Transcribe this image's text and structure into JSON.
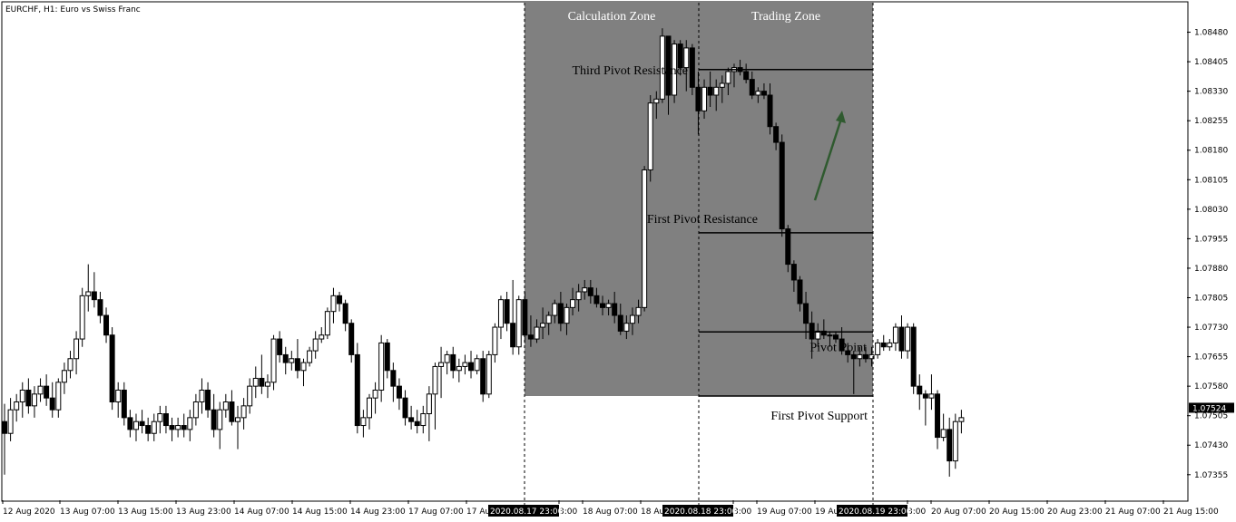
{
  "chart_data": {
    "type": "candlestick",
    "title": "EURCHF, H1:  Euro vs Swiss Franc",
    "ylim": [
      1.0729,
      1.08555
    ],
    "price_label": "1.07524",
    "y_ticks": [
      "1.08480",
      "1.08405",
      "1.08330",
      "1.08255",
      "1.08180",
      "1.08105",
      "1.08030",
      "1.07955",
      "1.07880",
      "1.07805",
      "1.07730",
      "1.07655",
      "1.07580",
      "1.07505",
      "1.07430",
      "1.07355"
    ],
    "x_ticks": [
      "12 Aug 2020",
      "13 Aug 07:00",
      "13 Aug 15:00",
      "13 Aug 23:00",
      "14 Aug 07:00",
      "14 Aug 15:00",
      "14 Aug 23:00",
      "17 Aug 07:00",
      "17 Au",
      "3:00",
      "18 Aug 07:00",
      "18 Au",
      "3:00",
      "19 Aug 07:00",
      "19 Au",
      "3:00",
      "20 Aug 07:00",
      "20 Aug 15:00",
      "20 Aug 23:00",
      "21 Aug 07:00",
      "21 Aug 15:00"
    ],
    "x_highlight": [
      "2020.08.17 23:00",
      "2020.08.18 23:00",
      "2020.08.19 23:00"
    ],
    "zones": [
      {
        "label": "Calculation Zone",
        "from": "2020.08.17 23:00",
        "to": "2020.08.18 23:00",
        "low": 1.07555
      },
      {
        "label": "Trading Zone",
        "from": "2020.08.18 23:00",
        "to": "2020.08.19 23:00",
        "low": 1.07555
      }
    ],
    "levels": [
      {
        "name": "Third Pivot Resistance",
        "value": 1.08385
      },
      {
        "name": "First Pivot Resistance",
        "value": 1.0797
      },
      {
        "name": "Pivot Point",
        "value": 1.07718
      },
      {
        "name": "First Pivot Support",
        "value": 1.07555
      }
    ],
    "candles": [
      [
        1.0749,
        1.07535,
        1.07355,
        1.0746
      ],
      [
        1.0746,
        1.0755,
        1.0744,
        1.0752
      ],
      [
        1.0752,
        1.0756,
        1.0749,
        1.0754
      ],
      [
        1.0754,
        1.0759,
        1.075,
        1.0757
      ],
      [
        1.0757,
        1.076,
        1.0751,
        1.0753
      ],
      [
        1.0753,
        1.0758,
        1.075,
        1.0756
      ],
      [
        1.0756,
        1.076,
        1.0754,
        1.0758
      ],
      [
        1.0758,
        1.0761,
        1.0753,
        1.0755
      ],
      [
        1.0755,
        1.0759,
        1.075,
        1.0752
      ],
      [
        1.0752,
        1.076,
        1.075,
        1.0759
      ],
      [
        1.0759,
        1.0764,
        1.0756,
        1.0762
      ],
      [
        1.0762,
        1.0767,
        1.076,
        1.0765
      ],
      [
        1.0765,
        1.0772,
        1.0761,
        1.077
      ],
      [
        1.077,
        1.0783,
        1.0768,
        1.0781
      ],
      [
        1.0781,
        1.0789,
        1.0777,
        1.0782
      ],
      [
        1.0782,
        1.0787,
        1.0778,
        1.078
      ],
      [
        1.078,
        1.0782,
        1.0774,
        1.0776
      ],
      [
        1.0776,
        1.0778,
        1.0769,
        1.0771
      ],
      [
        1.0771,
        1.0773,
        1.0752,
        1.0754
      ],
      [
        1.0754,
        1.0759,
        1.075,
        1.0757
      ],
      [
        1.0757,
        1.0759,
        1.0748,
        1.075
      ],
      [
        1.075,
        1.0752,
        1.0745,
        1.0747
      ],
      [
        1.0747,
        1.0751,
        1.0744,
        1.0749
      ],
      [
        1.0749,
        1.0752,
        1.0746,
        1.0748
      ],
      [
        1.0748,
        1.075,
        1.0744,
        1.0746
      ],
      [
        1.0746,
        1.0751,
        1.0744,
        1.0749
      ],
      [
        1.0749,
        1.0753,
        1.0746,
        1.0751
      ],
      [
        1.0751,
        1.0753,
        1.0746,
        1.0748
      ],
      [
        1.0748,
        1.075,
        1.0744,
        1.0747
      ],
      [
        1.0747,
        1.075,
        1.0745,
        1.0748
      ],
      [
        1.0748,
        1.0751,
        1.0745,
        1.0747
      ],
      [
        1.0747,
        1.0752,
        1.0744,
        1.075
      ],
      [
        1.075,
        1.0756,
        1.0748,
        1.0754
      ],
      [
        1.0754,
        1.076,
        1.0751,
        1.0757
      ],
      [
        1.0757,
        1.0759,
        1.075,
        1.0752
      ],
      [
        1.0752,
        1.0756,
        1.0745,
        1.0747
      ],
      [
        1.0747,
        1.0754,
        1.0742,
        1.0752
      ],
      [
        1.0752,
        1.0756,
        1.075,
        1.0754
      ],
      [
        1.0754,
        1.0757,
        1.0748,
        1.0749
      ],
      [
        1.0749,
        1.0753,
        1.0742,
        1.075
      ],
      [
        1.075,
        1.0755,
        1.0747,
        1.0753
      ],
      [
        1.0753,
        1.076,
        1.0751,
        1.0758
      ],
      [
        1.0758,
        1.0763,
        1.0755,
        1.076
      ],
      [
        1.076,
        1.0766,
        1.0756,
        1.0758
      ],
      [
        1.0758,
        1.0761,
        1.0755,
        1.0759
      ],
      [
        1.0759,
        1.0771,
        1.0757,
        1.077
      ],
      [
        1.077,
        1.0772,
        1.0764,
        1.0766
      ],
      [
        1.0766,
        1.0768,
        1.0761,
        1.0764
      ],
      [
        1.0764,
        1.0767,
        1.0762,
        1.0765
      ],
      [
        1.0765,
        1.077,
        1.076,
        1.0762
      ],
      [
        1.0762,
        1.0765,
        1.0758,
        1.0764
      ],
      [
        1.0764,
        1.0768,
        1.0763,
        1.0767
      ],
      [
        1.0767,
        1.0772,
        1.0765,
        1.077
      ],
      [
        1.077,
        1.0773,
        1.0769,
        1.0771
      ],
      [
        1.0771,
        1.0778,
        1.077,
        1.0777
      ],
      [
        1.0777,
        1.0783,
        1.0774,
        1.0781
      ],
      [
        1.0781,
        1.0782,
        1.0777,
        1.0779
      ],
      [
        1.0779,
        1.078,
        1.0772,
        1.0774
      ],
      [
        1.0774,
        1.0775,
        1.0764,
        1.0766
      ],
      [
        1.0766,
        1.0769,
        1.0746,
        1.0748
      ],
      [
        1.0748,
        1.0752,
        1.0745,
        1.075
      ],
      [
        1.075,
        1.0756,
        1.0747,
        1.0755
      ],
      [
        1.0755,
        1.0759,
        1.0751,
        1.0757
      ],
      [
        1.0757,
        1.0771,
        1.0754,
        1.0769
      ],
      [
        1.0769,
        1.077,
        1.076,
        1.0762
      ],
      [
        1.0762,
        1.0764,
        1.0754,
        1.0758
      ],
      [
        1.0758,
        1.076,
        1.0752,
        1.0755
      ],
      [
        1.0755,
        1.0757,
        1.0748,
        1.075
      ],
      [
        1.075,
        1.0753,
        1.0747,
        1.0749
      ],
      [
        1.0749,
        1.0752,
        1.0746,
        1.0748
      ],
      [
        1.0748,
        1.0753,
        1.0746,
        1.0751
      ],
      [
        1.0751,
        1.0758,
        1.0744,
        1.0756
      ],
      [
        1.0756,
        1.0764,
        1.0747,
        1.0763
      ],
      [
        1.0763,
        1.0768,
        1.0755,
        1.0764
      ],
      [
        1.0764,
        1.0767,
        1.0761,
        1.0766
      ],
      [
        1.0766,
        1.0768,
        1.076,
        1.0762
      ],
      [
        1.0762,
        1.0765,
        1.0759,
        1.0763
      ],
      [
        1.0763,
        1.0766,
        1.0761,
        1.0764
      ],
      [
        1.0764,
        1.0767,
        1.076,
        1.0762
      ],
      [
        1.0762,
        1.0766,
        1.0761,
        1.0765
      ],
      [
        1.0765,
        1.0767,
        1.0754,
        1.0756
      ],
      [
        1.0756,
        1.0767,
        1.0755,
        1.0766
      ],
      [
        1.0766,
        1.0774,
        1.0764,
        1.0773
      ],
      [
        1.0773,
        1.0781,
        1.077,
        1.078
      ],
      [
        1.078,
        1.0782,
        1.0772,
        1.0774
      ],
      [
        1.0774,
        1.0785,
        1.0766,
        1.0768
      ],
      [
        1.0768,
        1.0781,
        1.0766,
        1.078
      ],
      [
        1.078,
        1.0782,
        1.0769,
        1.0771
      ],
      [
        1.0771,
        1.0776,
        1.0768,
        1.077
      ],
      [
        1.077,
        1.0775,
        1.0769,
        1.0773
      ],
      [
        1.0773,
        1.0778,
        1.077,
        1.0774
      ],
      [
        1.0774,
        1.0777,
        1.0771,
        1.0776
      ],
      [
        1.0776,
        1.078,
        1.0774,
        1.0779
      ],
      [
        1.0779,
        1.0782,
        1.0772,
        1.0774
      ],
      [
        1.0774,
        1.0779,
        1.0771,
        1.0778
      ],
      [
        1.0778,
        1.0783,
        1.0776,
        1.078
      ],
      [
        1.078,
        1.0784,
        1.0777,
        1.0782
      ],
      [
        1.0782,
        1.0785,
        1.078,
        1.0783
      ],
      [
        1.0783,
        1.0785,
        1.0779,
        1.0781
      ],
      [
        1.0781,
        1.0783,
        1.0778,
        1.0779
      ],
      [
        1.0779,
        1.0781,
        1.0776,
        1.0778
      ],
      [
        1.0778,
        1.078,
        1.0776,
        1.0779
      ],
      [
        1.0779,
        1.0782,
        1.0774,
        1.0776
      ],
      [
        1.0776,
        1.0779,
        1.0771,
        1.0772
      ],
      [
        1.0772,
        1.0776,
        1.077,
        1.0774
      ],
      [
        1.0774,
        1.0778,
        1.0771,
        1.0776
      ],
      [
        1.0776,
        1.078,
        1.0774,
        1.0778
      ],
      [
        1.0778,
        1.0814,
        1.0777,
        1.0813
      ],
      [
        1.0813,
        1.0832,
        1.081,
        1.083
      ],
      [
        1.083,
        1.0833,
        1.0826,
        1.0831
      ],
      [
        1.0831,
        1.0849,
        1.083,
        1.0847
      ],
      [
        1.0847,
        1.0847,
        1.0827,
        1.0832
      ],
      [
        1.0832,
        1.0846,
        1.083,
        1.0845
      ],
      [
        1.0845,
        1.0846,
        1.0837,
        1.0839
      ],
      [
        1.0839,
        1.0846,
        1.0833,
        1.0844
      ],
      [
        1.0844,
        1.0845,
        1.0832,
        1.0834
      ],
      [
        1.0834,
        1.0838,
        1.0822,
        1.0828
      ],
      [
        1.0828,
        1.0836,
        1.0826,
        1.0834
      ],
      [
        1.0834,
        1.0838,
        1.0829,
        1.0832
      ],
      [
        1.0832,
        1.0836,
        1.0828,
        1.0834
      ],
      [
        1.0834,
        1.0837,
        1.083,
        1.0835
      ],
      [
        1.0835,
        1.0839,
        1.0832,
        1.0838
      ],
      [
        1.0838,
        1.084,
        1.0834,
        1.0839
      ],
      [
        1.0839,
        1.0841,
        1.0837,
        1.0838
      ],
      [
        1.0838,
        1.084,
        1.0835,
        1.0836
      ],
      [
        1.0836,
        1.0838,
        1.0831,
        1.0832
      ],
      [
        1.0832,
        1.0834,
        1.083,
        1.0833
      ],
      [
        1.0833,
        1.0835,
        1.0831,
        1.0832
      ],
      [
        1.0832,
        1.0835,
        1.0822,
        1.0824
      ],
      [
        1.0824,
        1.0825,
        1.0818,
        1.082
      ],
      [
        1.082,
        1.0822,
        1.0796,
        1.0798
      ],
      [
        1.0798,
        1.0799,
        1.0787,
        1.0789
      ],
      [
        1.0789,
        1.079,
        1.0782,
        1.0785
      ],
      [
        1.0785,
        1.0786,
        1.0777,
        1.0779
      ],
      [
        1.0779,
        1.0782,
        1.077,
        1.0774
      ],
      [
        1.0774,
        1.0777,
        1.0765,
        1.077
      ],
      [
        1.077,
        1.0774,
        1.0768,
        1.0772
      ],
      [
        1.0772,
        1.0775,
        1.077,
        1.0771
      ],
      [
        1.0771,
        1.0772,
        1.0768,
        1.0771
      ],
      [
        1.0771,
        1.0772,
        1.0769,
        1.077
      ],
      [
        1.077,
        1.0773,
        1.0766,
        1.0767
      ],
      [
        1.0767,
        1.0769,
        1.0764,
        1.0766
      ],
      [
        1.0766,
        1.0767,
        1.0756,
        1.0765
      ],
      [
        1.0765,
        1.0768,
        1.0763,
        1.0766
      ],
      [
        1.0766,
        1.0768,
        1.0764,
        1.0765
      ],
      [
        1.0765,
        1.0768,
        1.0763,
        1.0766
      ],
      [
        1.0766,
        1.077,
        1.0765,
        1.0769
      ],
      [
        1.0769,
        1.0771,
        1.0767,
        1.0768
      ],
      [
        1.0768,
        1.077,
        1.0767,
        1.0769
      ],
      [
        1.0769,
        1.0774,
        1.0767,
        1.0773
      ],
      [
        1.0773,
        1.0776,
        1.0765,
        1.0767
      ],
      [
        1.0767,
        1.0774,
        1.0765,
        1.0773
      ],
      [
        1.0773,
        1.0774,
        1.0756,
        1.0758
      ],
      [
        1.0758,
        1.0761,
        1.0752,
        1.0756
      ],
      [
        1.0756,
        1.0757,
        1.0748,
        1.0755
      ],
      [
        1.0755,
        1.0761,
        1.0752,
        1.0756
      ],
      [
        1.0756,
        1.0757,
        1.0742,
        1.0745
      ],
      [
        1.0745,
        1.0751,
        1.0744,
        1.0747
      ],
      [
        1.0747,
        1.075,
        1.0735,
        1.0739
      ],
      [
        1.0739,
        1.0751,
        1.0737,
        1.0749
      ],
      [
        1.0749,
        1.0752,
        1.0746,
        1.075
      ]
    ]
  }
}
